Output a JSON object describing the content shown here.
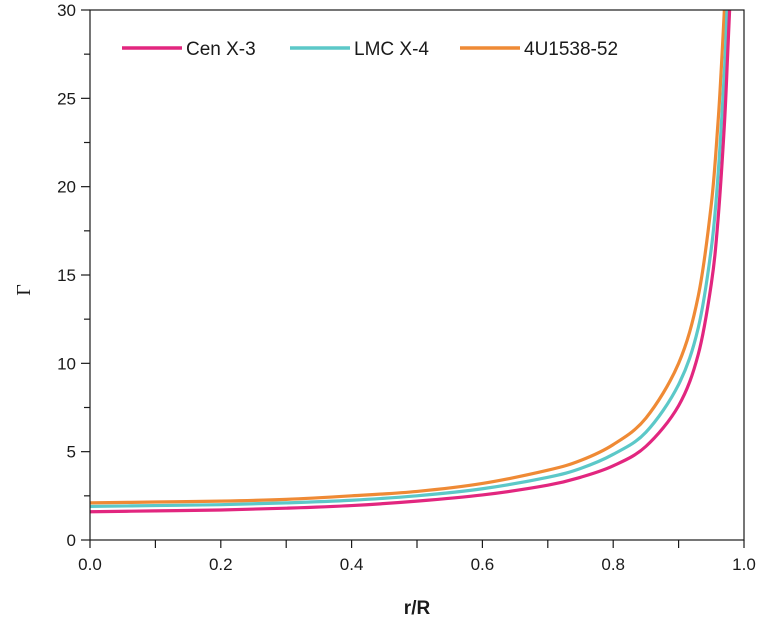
{
  "chart_data": {
    "type": "line",
    "title": "",
    "xlabel": "r/R",
    "ylabel": "Γ",
    "xlim": [
      0.0,
      1.0
    ],
    "ylim": [
      0,
      30
    ],
    "x_ticks": [
      "0.0",
      "0.2",
      "0.4",
      "0.6",
      "0.8",
      "1.0"
    ],
    "y_ticks": [
      "0",
      "5",
      "10",
      "15",
      "20",
      "25",
      "30"
    ],
    "grid": false,
    "legend_position": "top",
    "series": [
      {
        "name": "Cen X-3",
        "color": "#e2267f",
        "x": [
          0.0,
          0.1,
          0.2,
          0.3,
          0.4,
          0.5,
          0.6,
          0.7,
          0.75,
          0.8,
          0.85,
          0.9,
          0.93,
          0.95,
          0.96,
          0.97,
          0.975,
          0.978
        ],
        "y": [
          1.6,
          1.65,
          1.7,
          1.8,
          1.95,
          2.2,
          2.55,
          3.1,
          3.55,
          4.2,
          5.3,
          7.6,
          10.5,
          14.5,
          18.0,
          23.5,
          27.5,
          30.0
        ]
      },
      {
        "name": "LMC X-4",
        "color": "#5cc8c8",
        "x": [
          0.0,
          0.1,
          0.2,
          0.3,
          0.4,
          0.5,
          0.6,
          0.7,
          0.75,
          0.8,
          0.85,
          0.9,
          0.93,
          0.95,
          0.96,
          0.97,
          0.974
        ],
        "y": [
          1.9,
          1.95,
          2.0,
          2.1,
          2.25,
          2.5,
          2.9,
          3.55,
          4.05,
          4.85,
          6.1,
          8.8,
          12.0,
          16.5,
          20.5,
          26.5,
          30.0
        ]
      },
      {
        "name": "4U1538-52",
        "color": "#ef8a35",
        "x": [
          0.0,
          0.1,
          0.2,
          0.3,
          0.4,
          0.5,
          0.6,
          0.7,
          0.75,
          0.8,
          0.85,
          0.9,
          0.93,
          0.95,
          0.96,
          0.965,
          0.97
        ],
        "y": [
          2.1,
          2.15,
          2.2,
          2.3,
          2.5,
          2.75,
          3.2,
          3.95,
          4.5,
          5.4,
          6.9,
          10.0,
          13.8,
          19.0,
          23.5,
          26.5,
          30.0
        ]
      }
    ]
  }
}
